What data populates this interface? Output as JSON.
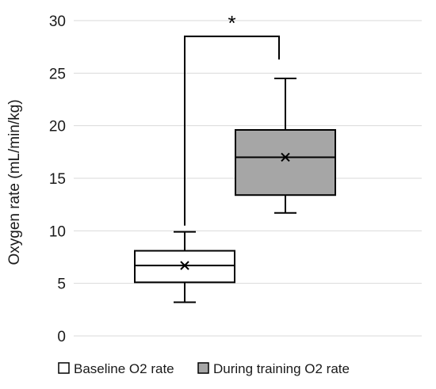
{
  "chart_data": {
    "type": "box",
    "ylabel": "Oxygen rate  (mL/min/kg)",
    "ylim": [
      0,
      30
    ],
    "yticks": [
      0,
      5,
      10,
      15,
      20,
      25,
      30
    ],
    "grid": true,
    "legend_position": "bottom",
    "series": [
      {
        "name": "Baseline O2 rate",
        "fill": "#ffffff",
        "whisker_low": 3.2,
        "q1": 5.1,
        "median": 6.7,
        "q3": 8.1,
        "whisker_high": 9.9,
        "mean": 6.7
      },
      {
        "name": "During training O2 rate",
        "fill": "#a6a6a6",
        "whisker_low": 11.7,
        "q1": 13.4,
        "median": 17.0,
        "q3": 19.6,
        "whisker_high": 24.5,
        "mean": 17.0
      }
    ],
    "significance": {
      "label": "*",
      "left_start": 10.5,
      "right_start": 26.3,
      "bracket": 28.5
    }
  },
  "colors": {
    "grid": "#d9d9d9",
    "stroke": "#000000",
    "axis_text": "#1a1a1a"
  }
}
